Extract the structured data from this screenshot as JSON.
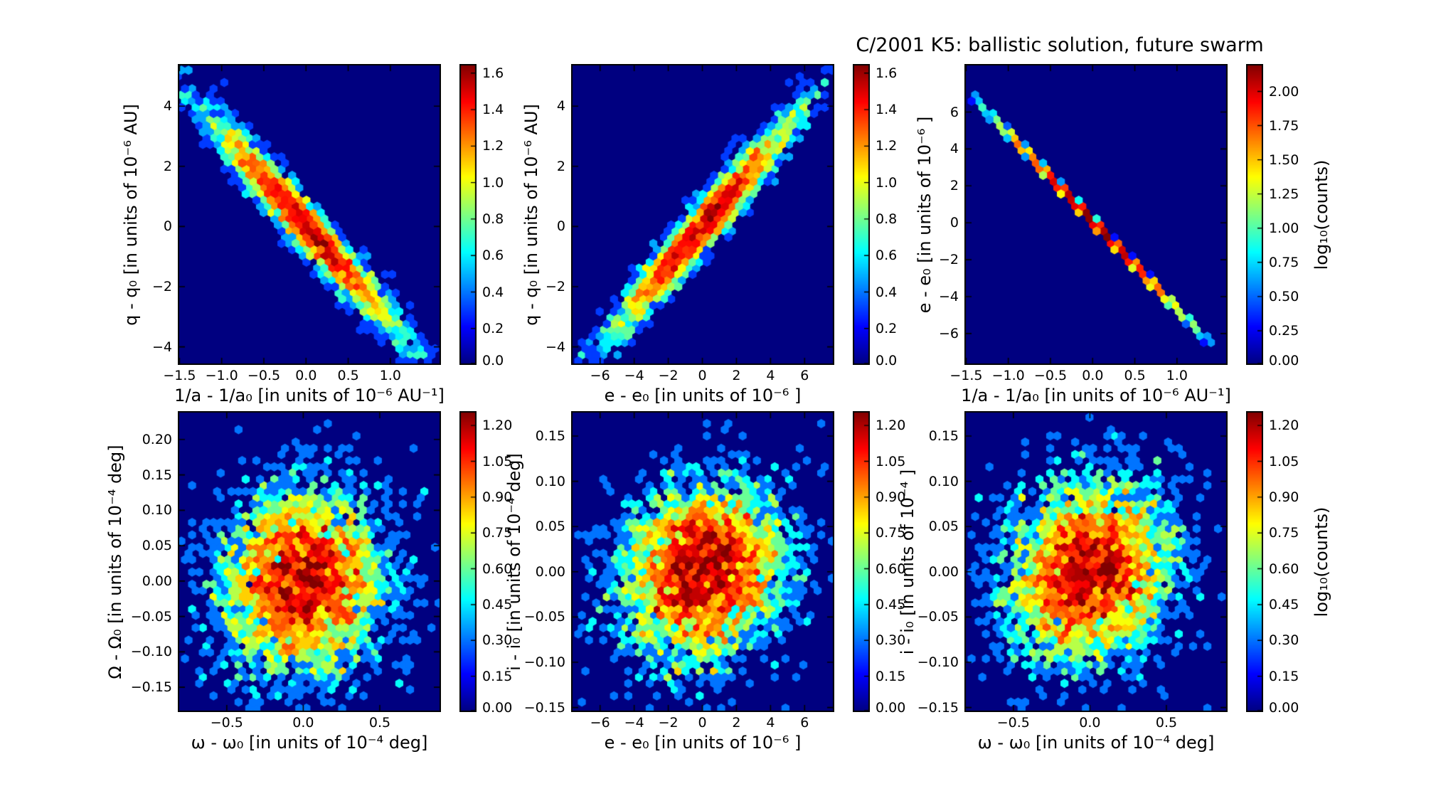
{
  "figure": {
    "title": "C/2001 K5:  ballistic solution, future swarm",
    "background": "#ffffff",
    "plot_background": "#000080",
    "colormap": "jet",
    "color_scale": "log10(counts)"
  },
  "chart_data": [
    {
      "name": "perihelion-distance vs inverse-semimajor-axis",
      "type": "hexbin",
      "xlabel": "1/a - 1/a₀ [in units of 10⁻⁶ AU⁻¹]",
      "ylabel": "q - q₀ [in units of 10⁻⁶ AU]",
      "xlim": [
        -1.52,
        1.6
      ],
      "ylim": [
        -4.6,
        5.4
      ],
      "xticks": [
        -1.5,
        -1.0,
        -0.5,
        0.0,
        0.5,
        1.0
      ],
      "xtick_labels": [
        "−1.5",
        "−1.0",
        "−0.5",
        "0.0",
        "0.5",
        "1.0"
      ],
      "yticks": [
        4,
        2,
        0,
        -2,
        -4
      ],
      "ytick_labels": [
        "4",
        "2",
        "0",
        "−2",
        "−4"
      ],
      "generator": {
        "kind": "gaussian2d",
        "n": 3100,
        "sigma_x": 0.56,
        "sigma_y": 1.78,
        "rho": -0.97,
        "seed": 101
      },
      "correlation": "strong negative",
      "colorbar": {
        "vmax": 1.65,
        "tick_values": [
          0.0,
          0.2,
          0.4,
          0.6,
          0.8,
          1.0,
          1.2,
          1.4,
          1.6
        ],
        "tick_labels": [
          "0.0",
          "0.2",
          "0.4",
          "0.6",
          "0.8",
          "1.0",
          "1.2",
          "1.4",
          "1.6"
        ]
      }
    },
    {
      "name": "perihelion-distance vs eccentricity",
      "type": "hexbin",
      "xlabel": "e - e₀ [in units of 10⁻⁶ ]",
      "ylabel": "q - q₀ [in units of 10⁻⁶ AU]",
      "xlim": [
        -7.7,
        7.74
      ],
      "ylim": [
        -4.6,
        5.4
      ],
      "xticks": [
        -6,
        -4,
        -2,
        0,
        2,
        4,
        6
      ],
      "xtick_labels": [
        "−6",
        "−4",
        "−2",
        "0",
        "2",
        "4",
        "6"
      ],
      "yticks": [
        4,
        2,
        0,
        -2,
        -4
      ],
      "ytick_labels": [
        "4",
        "2",
        "0",
        "−2",
        "−4"
      ],
      "generator": {
        "kind": "gaussian2d",
        "n": 3100,
        "sigma_x": 2.65,
        "sigma_y": 1.78,
        "rho": 0.97,
        "seed": 202
      },
      "correlation": "strong positive",
      "colorbar": {
        "vmax": 1.65,
        "tick_values": [
          0.0,
          0.2,
          0.4,
          0.6,
          0.8,
          1.0,
          1.2,
          1.4,
          1.6
        ],
        "tick_labels": [
          "0.0",
          "0.2",
          "0.4",
          "0.6",
          "0.8",
          "1.0",
          "1.2",
          "1.4",
          "1.6"
        ]
      }
    },
    {
      "name": "eccentricity vs inverse-semimajor-axis",
      "type": "hexbin",
      "xlabel": "1/a - 1/a₀ [in units of 10⁻⁶ AU⁻¹]",
      "ylabel": "e - e₀ [in units of 10⁻⁶ ]",
      "xlim": [
        -1.52,
        1.6
      ],
      "ylim": [
        -7.7,
        8.6
      ],
      "xticks": [
        -1.5,
        -1.0,
        -0.5,
        0.0,
        0.5,
        1.0
      ],
      "xtick_labels": [
        "−1.5",
        "−1.0",
        "−0.5",
        "0.0",
        "0.5",
        "1.0"
      ],
      "yticks": [
        6,
        4,
        2,
        0,
        -2,
        -4,
        -6
      ],
      "ytick_labels": [
        "6",
        "4",
        "2",
        "0",
        "−2",
        "−4",
        "−6"
      ],
      "generator": {
        "kind": "line",
        "n": 3000,
        "slope": -4.77,
        "intercept": 0.08,
        "sigma_t": 0.52,
        "jitter": 0.012,
        "t_range": [
          -1.48,
          1.42
        ],
        "seed": 303
      },
      "correlation": "perfect negative (thin diagonal line)",
      "colorbar": {
        "vmax": 2.2,
        "label": "log₁₀(counts)",
        "tick_values": [
          0.0,
          0.25,
          0.5,
          0.75,
          1.0,
          1.25,
          1.5,
          1.75,
          2.0
        ],
        "tick_labels": [
          "0.00",
          "0.25",
          "0.50",
          "0.75",
          "1.00",
          "1.25",
          "1.50",
          "1.75",
          "2.00"
        ]
      }
    },
    {
      "name": "ascending-node vs argument-of-perihelion",
      "type": "hexbin",
      "xlabel": "ω - ω₀ [in units of 10⁻⁴ deg]",
      "ylabel": "Ω - Ω₀ [in units of 10⁻⁴ deg]",
      "xlim": [
        -0.82,
        0.9
      ],
      "ylim": [
        -0.185,
        0.24
      ],
      "xticks": [
        -0.5,
        0.0,
        0.5
      ],
      "xtick_labels": [
        "−0.5",
        "0.0",
        "0.5"
      ],
      "yticks": [
        0.2,
        0.15,
        0.1,
        0.05,
        0.0,
        -0.05,
        -0.1,
        -0.15
      ],
      "ytick_labels": [
        "0.20",
        "0.15",
        "0.10",
        "0.05",
        "0.00",
        "−0.05",
        "−0.10",
        "−0.15"
      ],
      "generator": {
        "kind": "gaussian2d",
        "n": 3900,
        "sigma_x": 0.27,
        "sigma_y": 0.066,
        "rho": 0.05,
        "seed": 404
      },
      "correlation": "none (diffuse cloud)",
      "colorbar": {
        "vmax": 1.26,
        "tick_values": [
          0.0,
          0.15,
          0.3,
          0.45,
          0.6,
          0.75,
          0.9,
          1.05,
          1.2
        ],
        "tick_labels": [
          "0.00",
          "0.15",
          "0.30",
          "0.45",
          "0.60",
          "0.75",
          "0.90",
          "1.05",
          "1.20"
        ]
      }
    },
    {
      "name": "inclination vs eccentricity",
      "type": "hexbin",
      "xlabel": "e - e₀ [in units of 10⁻⁶ ]",
      "ylabel": "i - i₀ [in units of 10⁻⁴ deg]",
      "xlim": [
        -7.7,
        7.74
      ],
      "ylim": [
        -0.155,
        0.1775
      ],
      "xticks": [
        -6,
        -4,
        -2,
        0,
        2,
        4,
        6
      ],
      "xtick_labels": [
        "−6",
        "−4",
        "−2",
        "0",
        "2",
        "4",
        "6"
      ],
      "yticks": [
        0.15,
        0.1,
        0.05,
        0.0,
        -0.05,
        -0.1,
        -0.15
      ],
      "ytick_labels": [
        "0.15",
        "0.10",
        "0.05",
        "0.00",
        "−0.05",
        "−0.10",
        "−0.15"
      ],
      "generator": {
        "kind": "gaussian2d",
        "n": 4000,
        "sigma_x": 2.4,
        "sigma_y": 0.049,
        "rho": 0.12,
        "seed": 505
      },
      "correlation": "none (diffuse cloud)",
      "colorbar": {
        "vmax": 1.26,
        "tick_values": [
          0.0,
          0.15,
          0.3,
          0.45,
          0.6,
          0.75,
          0.9,
          1.05,
          1.2
        ],
        "tick_labels": [
          "0.00",
          "0.15",
          "0.30",
          "0.45",
          "0.60",
          "0.75",
          "0.90",
          "1.05",
          "1.20"
        ]
      }
    },
    {
      "name": "inclination vs argument-of-perihelion",
      "type": "hexbin",
      "xlabel": "ω - ω₀ [in units of 10⁻⁴ deg]",
      "ylabel": "i - i₀ [in units of 10⁻⁴ ]",
      "xlim": [
        -0.82,
        0.9
      ],
      "ylim": [
        -0.155,
        0.1775
      ],
      "xticks": [
        -0.5,
        0.0,
        0.5
      ],
      "xtick_labels": [
        "−0.5",
        "0.0",
        "0.5"
      ],
      "yticks": [
        0.15,
        0.1,
        0.05,
        0.0,
        -0.05,
        -0.1,
        -0.15
      ],
      "ytick_labels": [
        "0.15",
        "0.10",
        "0.05",
        "0.00",
        "−0.05",
        "−0.10",
        "−0.15"
      ],
      "generator": {
        "kind": "gaussian2d",
        "n": 3900,
        "sigma_x": 0.27,
        "sigma_y": 0.051,
        "rho": 0.1,
        "seed": 606
      },
      "correlation": "none (diffuse cloud)",
      "colorbar": {
        "vmax": 1.26,
        "label": "log₁₀(counts)",
        "tick_values": [
          0.0,
          0.15,
          0.3,
          0.45,
          0.6,
          0.75,
          0.9,
          1.05,
          1.2
        ],
        "tick_labels": [
          "0.00",
          "0.15",
          "0.30",
          "0.45",
          "0.60",
          "0.75",
          "0.90",
          "1.05",
          "1.20"
        ]
      }
    }
  ]
}
